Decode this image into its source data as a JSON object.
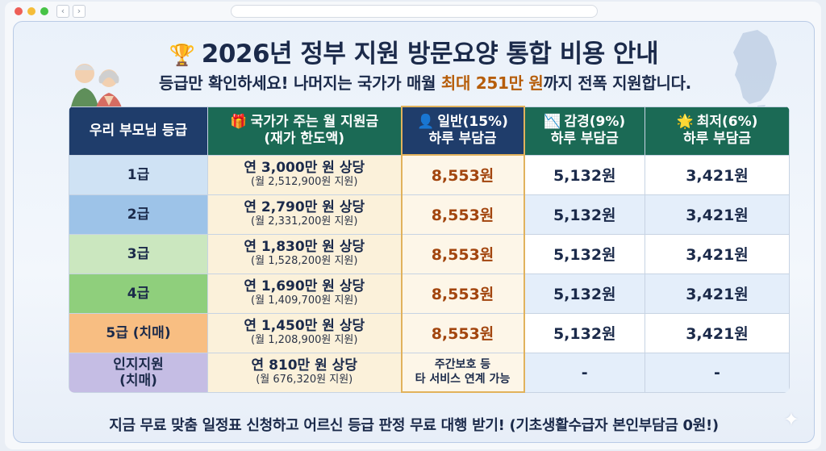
{
  "title": "2026년 정부 지원 방문요양 통합 비용 안내",
  "title_icon": "trophy-icon",
  "subtitle": {
    "before": "등급만 확인하세요! 나머지는 국가가 매월 ",
    "highlight": "최대 251만 원",
    "after": "까지 전폭 지원합니다."
  },
  "table": {
    "headers": {
      "grade": "우리 부모님 등급",
      "support_line1": "국가가 주는 월 지원금",
      "support_line2": "(재가 한도액)",
      "general_line1": "일반(15%)",
      "general_line2": "하루 부담금",
      "reduced_line1": "감경(9%)",
      "reduced_line2": "하루 부담금",
      "lowest_line1": "최저(6%)",
      "lowest_line2": "하루 부담금"
    },
    "rows": [
      {
        "grade": "1급",
        "support_main": "연 3,000만 원 상당",
        "support_sub": "(월 2,512,900원 지원)",
        "general": "8,553원",
        "reduced": "5,132원",
        "lowest": "3,421원"
      },
      {
        "grade": "2급",
        "support_main": "연 2,790만 원 상당",
        "support_sub": "(월 2,331,200원 지원)",
        "general": "8,553원",
        "reduced": "5,132원",
        "lowest": "3,421원"
      },
      {
        "grade": "3급",
        "support_main": "연 1,830만 원 상당",
        "support_sub": "(월 1,528,200원 지원)",
        "general": "8,553원",
        "reduced": "5,132원",
        "lowest": "3,421원"
      },
      {
        "grade": "4급",
        "support_main": "연 1,690만 원 상당",
        "support_sub": "(월 1,409,700원 지원)",
        "general": "8,553원",
        "reduced": "5,132원",
        "lowest": "3,421원"
      },
      {
        "grade": "5급 (치매)",
        "support_main": "연 1,450만 원 상당",
        "support_sub": "(월 1,208,900원 지원)",
        "general": "8,553원",
        "reduced": "5,132원",
        "lowest": "3,421원"
      },
      {
        "grade_line1": "인지지원",
        "grade_line2": "(치매)",
        "support_main": "연 810만 원 상당",
        "support_sub": "(월 676,320원 지원)",
        "general_line1": "주간보호 등",
        "general_line2": "타 서비스 연계 가능",
        "reduced": "-",
        "lowest": "-"
      }
    ]
  },
  "footer": "지금 무료 맞춤 일정표 신청하고 어르신 등급 판정 무료 대행 받기! (기초생활수급자 본인부담금 0원!)",
  "colors": {
    "header_navy": "#1f3d6b",
    "header_green": "#1b6a55",
    "highlight_orange": "#b65d0a",
    "general_value": "#a2450e"
  }
}
